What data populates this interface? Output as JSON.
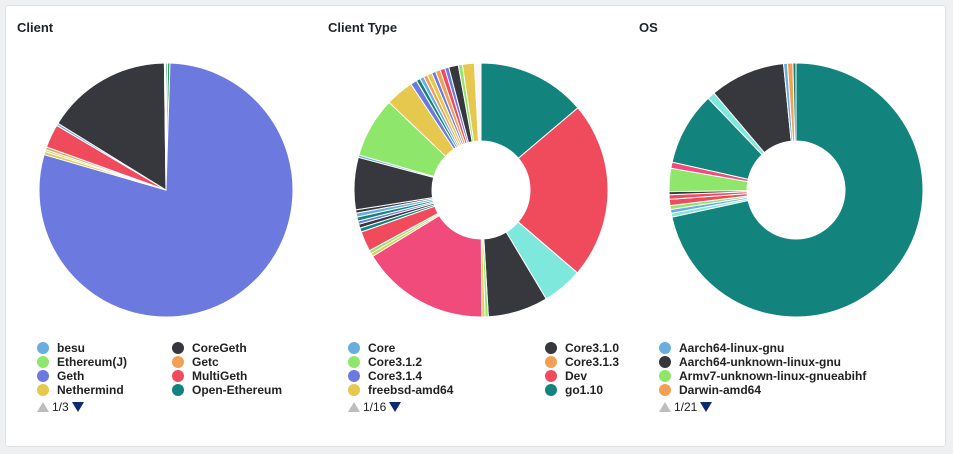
{
  "chart_data": [
    {
      "type": "pie",
      "title": "Client",
      "donut": false,
      "slices": [
        {
          "label": "Open-Ethereum",
          "value": 0.2,
          "color": "#12837d"
        },
        {
          "label": "",
          "value": 0.3,
          "color": "#2f9e44"
        },
        {
          "label": "Geth",
          "value": 79.0,
          "color": "#6c7ae0"
        },
        {
          "label": "Nethermind",
          "value": 0.4,
          "color": "#e6c84f"
        },
        {
          "label": "Ethereum(J)",
          "value": 0.25,
          "color": "#8ee66b"
        },
        {
          "label": "Getc",
          "value": 0.35,
          "color": "#f3a055"
        },
        {
          "label": "MultiGeth",
          "value": 3.0,
          "color": "#f04b5d"
        },
        {
          "label": "besu",
          "value": 0.3,
          "color": "#6aaee0"
        },
        {
          "label": "CoreGeth",
          "value": 16.0,
          "color": "#36383d"
        },
        {
          "label": "",
          "value": 0.2,
          "color": "#f8f8f8"
        }
      ],
      "legend": [
        {
          "label": "besu",
          "color": "#6aaee0"
        },
        {
          "label": "Ethereum(J)",
          "color": "#8ee66b"
        },
        {
          "label": "Geth",
          "color": "#6c7ae0"
        },
        {
          "label": "Nethermind",
          "color": "#e6c84f"
        },
        {
          "label": "CoreGeth",
          "color": "#36383d"
        },
        {
          "label": "Getc",
          "color": "#f3a055"
        },
        {
          "label": "MultiGeth",
          "color": "#f04b5d"
        },
        {
          "label": "Open-Ethereum",
          "color": "#12837d"
        }
      ],
      "pager": "1/3"
    },
    {
      "type": "pie",
      "title": "Client Type",
      "donut": true,
      "slices": [
        {
          "label": "go1.10",
          "value": 13.5,
          "color": "#12837d"
        },
        {
          "label": "Dev",
          "value": 22.0,
          "color": "#f04b5d"
        },
        {
          "label": "",
          "value": 5.0,
          "color": "#7fe8dc"
        },
        {
          "label": "Core3.1.0",
          "value": 7.5,
          "color": "#36383d"
        },
        {
          "label": "",
          "value": 0.4,
          "color": "#8ee66b"
        },
        {
          "label": "",
          "value": 0.4,
          "color": "#e6c84f"
        },
        {
          "label": "",
          "value": 16.0,
          "color": "#f04b7a"
        },
        {
          "label": "",
          "value": 0.4,
          "color": "#e6c84f"
        },
        {
          "label": "",
          "value": 0.4,
          "color": "#8ee66b"
        },
        {
          "label": "",
          "value": 2.5,
          "color": "#f04b5d"
        },
        {
          "label": "",
          "value": 0.5,
          "color": "#12837d"
        },
        {
          "label": "",
          "value": 0.5,
          "color": "#36383d"
        },
        {
          "label": "",
          "value": 0.4,
          "color": "#6c7ae0"
        },
        {
          "label": "",
          "value": 0.5,
          "color": "#12837d"
        },
        {
          "label": "",
          "value": 0.5,
          "color": "#6aaee0"
        },
        {
          "label": "",
          "value": 0.4,
          "color": "#36383d"
        },
        {
          "label": "",
          "value": 6.5,
          "color": "#36383d"
        },
        {
          "label": "",
          "value": 0.3,
          "color": "#6aaee0"
        },
        {
          "label": "Core3.1.2",
          "value": 7.5,
          "color": "#8ee66b"
        },
        {
          "label": "freebsd-amd64",
          "value": 3.5,
          "color": "#e6c84f"
        },
        {
          "label": "",
          "value": 0.8,
          "color": "#6c7ae0"
        },
        {
          "label": "",
          "value": 0.5,
          "color": "#12837d"
        },
        {
          "label": "Core",
          "value": 0.5,
          "color": "#6aaee0"
        },
        {
          "label": "",
          "value": 0.5,
          "color": "#f3a055"
        },
        {
          "label": "",
          "value": 0.6,
          "color": "#e6c84f"
        },
        {
          "label": "",
          "value": 0.5,
          "color": "#6c7ae0"
        },
        {
          "label": "Core3.1.3",
          "value": 0.6,
          "color": "#f3a055"
        },
        {
          "label": "",
          "value": 0.6,
          "color": "#f04b5d"
        },
        {
          "label": "Core3.1.4",
          "value": 0.5,
          "color": "#6c7ae0"
        },
        {
          "label": "",
          "value": 1.2,
          "color": "#36383d"
        },
        {
          "label": "",
          "value": 0.5,
          "color": "#8ee66b"
        },
        {
          "label": "",
          "value": 1.5,
          "color": "#e6c84f"
        },
        {
          "label": "",
          "value": 0.8,
          "color": "#f8f8f8"
        }
      ],
      "legend": [
        {
          "label": "Core",
          "color": "#6aaee0"
        },
        {
          "label": "Core3.1.2",
          "color": "#8ee66b"
        },
        {
          "label": "Core3.1.4",
          "color": "#6c7ae0"
        },
        {
          "label": "freebsd-amd64",
          "color": "#e6c84f"
        },
        {
          "label": "Core3.1.0",
          "color": "#36383d"
        },
        {
          "label": "Core3.1.3",
          "color": "#f3a055"
        },
        {
          "label": "Dev",
          "color": "#f04b5d"
        },
        {
          "label": "go1.10",
          "color": "#12837d"
        }
      ],
      "pager": "1/16"
    },
    {
      "type": "pie",
      "title": "OS",
      "donut": true,
      "slices": [
        {
          "label": "",
          "value": 73.0,
          "color": "#12837d"
        },
        {
          "label": "",
          "value": 0.5,
          "color": "#7fe8dc"
        },
        {
          "label": "",
          "value": 0.5,
          "color": "#6aaee0"
        },
        {
          "label": "",
          "value": 0.5,
          "color": "#8ee66b"
        },
        {
          "label": "",
          "value": 0.8,
          "color": "#f04b5d"
        },
        {
          "label": "",
          "value": 0.6,
          "color": "#f04b5d"
        },
        {
          "label": "",
          "value": 0.4,
          "color": "#36383d"
        },
        {
          "label": "Armv7-unknown-linux-gnueabihf",
          "value": 3.0,
          "color": "#8ee66b"
        },
        {
          "label": "",
          "value": 0.8,
          "color": "#f04b7a"
        },
        {
          "label": "",
          "value": 9.5,
          "color": "#12837d"
        },
        {
          "label": "",
          "value": 1.0,
          "color": "#7fe8dc"
        },
        {
          "label": "Aarch64-unknown-linux-gnu",
          "value": 9.8,
          "color": "#36383d"
        },
        {
          "label": "Aarch64-linux-gnu",
          "value": 0.5,
          "color": "#6aaee0"
        },
        {
          "label": "Darwin-amd64",
          "value": 0.7,
          "color": "#f3a055"
        },
        {
          "label": "",
          "value": 0.4,
          "color": "#12837d"
        }
      ],
      "legend": [
        {
          "label": "Aarch64-linux-gnu",
          "color": "#6aaee0"
        },
        {
          "label": "Aarch64-unknown-linux-gnu",
          "color": "#36383d"
        },
        {
          "label": "Armv7-unknown-linux-gnueabihf",
          "color": "#8ee66b"
        },
        {
          "label": "Darwin-amd64",
          "color": "#f3a055"
        }
      ],
      "pager": "1/21"
    }
  ]
}
